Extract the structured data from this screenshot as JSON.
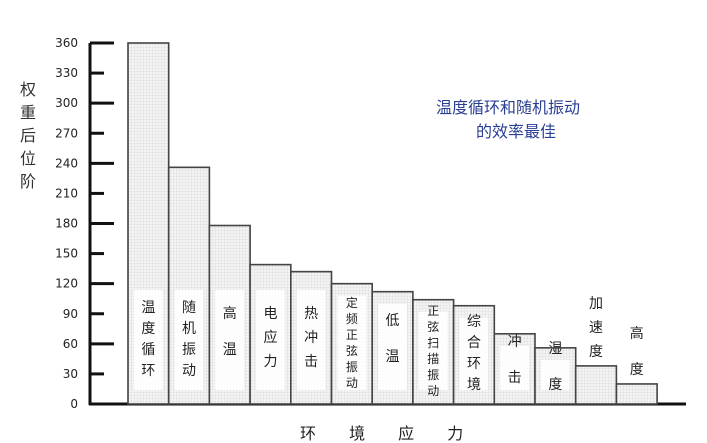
{
  "chart_data": {
    "type": "bar",
    "title": "",
    "xlabel": "环 境 应 力",
    "ylabel": "权重后位阶",
    "annotation": [
      "温度循环和随机振动",
      "的效率最佳"
    ],
    "categories": [
      "温度循环",
      "随机振动",
      "高温",
      "电应力",
      "热冲击",
      "定频正弦振动",
      "低温",
      "正弦扫描振动",
      "综合环境",
      "冲击",
      "湿度",
      "加速度",
      "高度"
    ],
    "values": [
      360,
      236,
      178,
      139,
      132,
      120,
      112,
      104,
      98,
      70,
      56,
      38,
      20
    ],
    "ylim": [
      0,
      360
    ],
    "yticks": [
      0,
      30,
      60,
      90,
      120,
      150,
      180,
      210,
      240,
      270,
      300,
      330,
      360
    ],
    "grid": false,
    "colors": {
      "bar_fill": "#eeeeee",
      "bar_edge": "#444444",
      "annotation": "#2a3f94"
    }
  }
}
